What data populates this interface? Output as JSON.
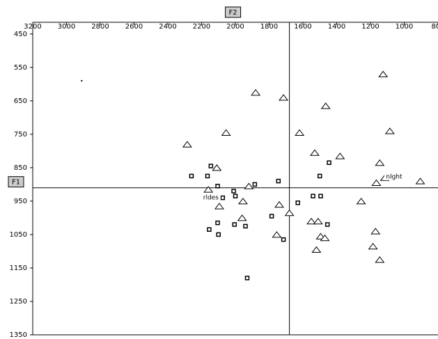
{
  "chart_data": {
    "type": "scatter",
    "xlabel": "F2",
    "ylabel": "F1",
    "xlim": [
      3200,
      800
    ],
    "ylim": [
      415,
      1350
    ],
    "xticks": [
      3200,
      3000,
      2800,
      2600,
      2400,
      2200,
      2000,
      1800,
      1600,
      1400,
      1200,
      1000,
      800
    ],
    "yticks": [
      450,
      550,
      650,
      750,
      850,
      950,
      1050,
      1150,
      1250,
      1350
    ],
    "ref_x": 1680,
    "ref_y": 910,
    "series": [
      {
        "marker": "triangle",
        "color": "#000000",
        "x": [
          1125,
          1880,
          1715,
          1465,
          2055,
          1620,
          1085,
          2285,
          1530,
          1380,
          2110,
          1145,
          1165,
          1115,
          905,
          2160,
          1920,
          1955,
          2095,
          1740,
          1680,
          1960,
          1255,
          1550,
          1510,
          1755,
          1495,
          1470,
          1170,
          1520,
          1185,
          1145
        ],
        "values": [
          570,
          625,
          640,
          665,
          745,
          745,
          740,
          780,
          805,
          815,
          850,
          835,
          895,
          880,
          890,
          915,
          905,
          950,
          965,
          960,
          985,
          1000,
          950,
          1010,
          1010,
          1050,
          1055,
          1060,
          1040,
          1095,
          1085,
          1125
        ]
      },
      {
        "marker": "square",
        "color": "#000000",
        "x": [
          2260,
          2165,
          2145,
          2105,
          2010,
          2000,
          1885,
          1745,
          2075,
          1500,
          1445,
          1540,
          1495,
          1630,
          1785,
          2105,
          2155,
          2005,
          1940,
          2100,
          1715,
          1455,
          1930
        ],
        "values": [
          875,
          875,
          845,
          905,
          920,
          935,
          900,
          890,
          940,
          875,
          835,
          935,
          935,
          955,
          995,
          1015,
          1035,
          1020,
          1025,
          1050,
          1065,
          1020,
          1180
        ]
      },
      {
        "marker": "dot",
        "color": "#000000",
        "x": [
          2910
        ],
        "values": [
          590
        ]
      }
    ],
    "annotations": [
      {
        "text": "rldes",
        "x": 2145,
        "y": 940
      },
      {
        "text": "nlght",
        "x": 1060,
        "y": 877
      }
    ]
  }
}
